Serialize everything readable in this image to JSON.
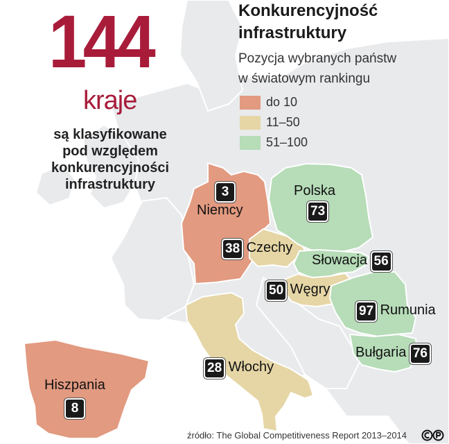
{
  "colors": {
    "sea": "#ffffff",
    "land": "#e8eaec",
    "border": "#ffffff",
    "accent": "#a81c3a",
    "tier_top10": "#e29a80",
    "tier_11_50": "#e6d6a6",
    "tier_51_100": "#b6dcb8",
    "badge_bg": "#1a1a1a"
  },
  "headline": {
    "number": "144",
    "unit": "kraje",
    "description": [
      "są klasyfikowane",
      "pod względem",
      "konkurencyjności",
      "infrastruktury"
    ]
  },
  "title": [
    "Konkurencyjność",
    "infrastruktury"
  ],
  "subtitle": [
    "Pozycja wybranych państw",
    "w światowym rankingu"
  ],
  "legend": [
    {
      "label": "do 10",
      "tier": "tier_top10"
    },
    {
      "label": "11–50",
      "tier": "tier_11_50"
    },
    {
      "label": "51–100",
      "tier": "tier_51_100"
    }
  ],
  "countries": [
    {
      "name": "Niemcy",
      "rank": "3",
      "tier": "tier_top10"
    },
    {
      "name": "Polska",
      "rank": "73",
      "tier": "tier_51_100"
    },
    {
      "name": "Czechy",
      "rank": "38",
      "tier": "tier_11_50"
    },
    {
      "name": "Słowacja",
      "rank": "56",
      "tier": "tier_51_100"
    },
    {
      "name": "Węgry",
      "rank": "50",
      "tier": "tier_11_50"
    },
    {
      "name": "Rumunia",
      "rank": "97",
      "tier": "tier_51_100"
    },
    {
      "name": "Bułgaria",
      "rank": "76",
      "tier": "tier_51_100"
    },
    {
      "name": "Włochy",
      "rank": "28",
      "tier": "tier_11_50"
    },
    {
      "name": "Hiszpania",
      "rank": "8",
      "tier": "tier_top10"
    }
  ],
  "source": "źródło: The Global Competitiveness Report 2013–2014"
}
